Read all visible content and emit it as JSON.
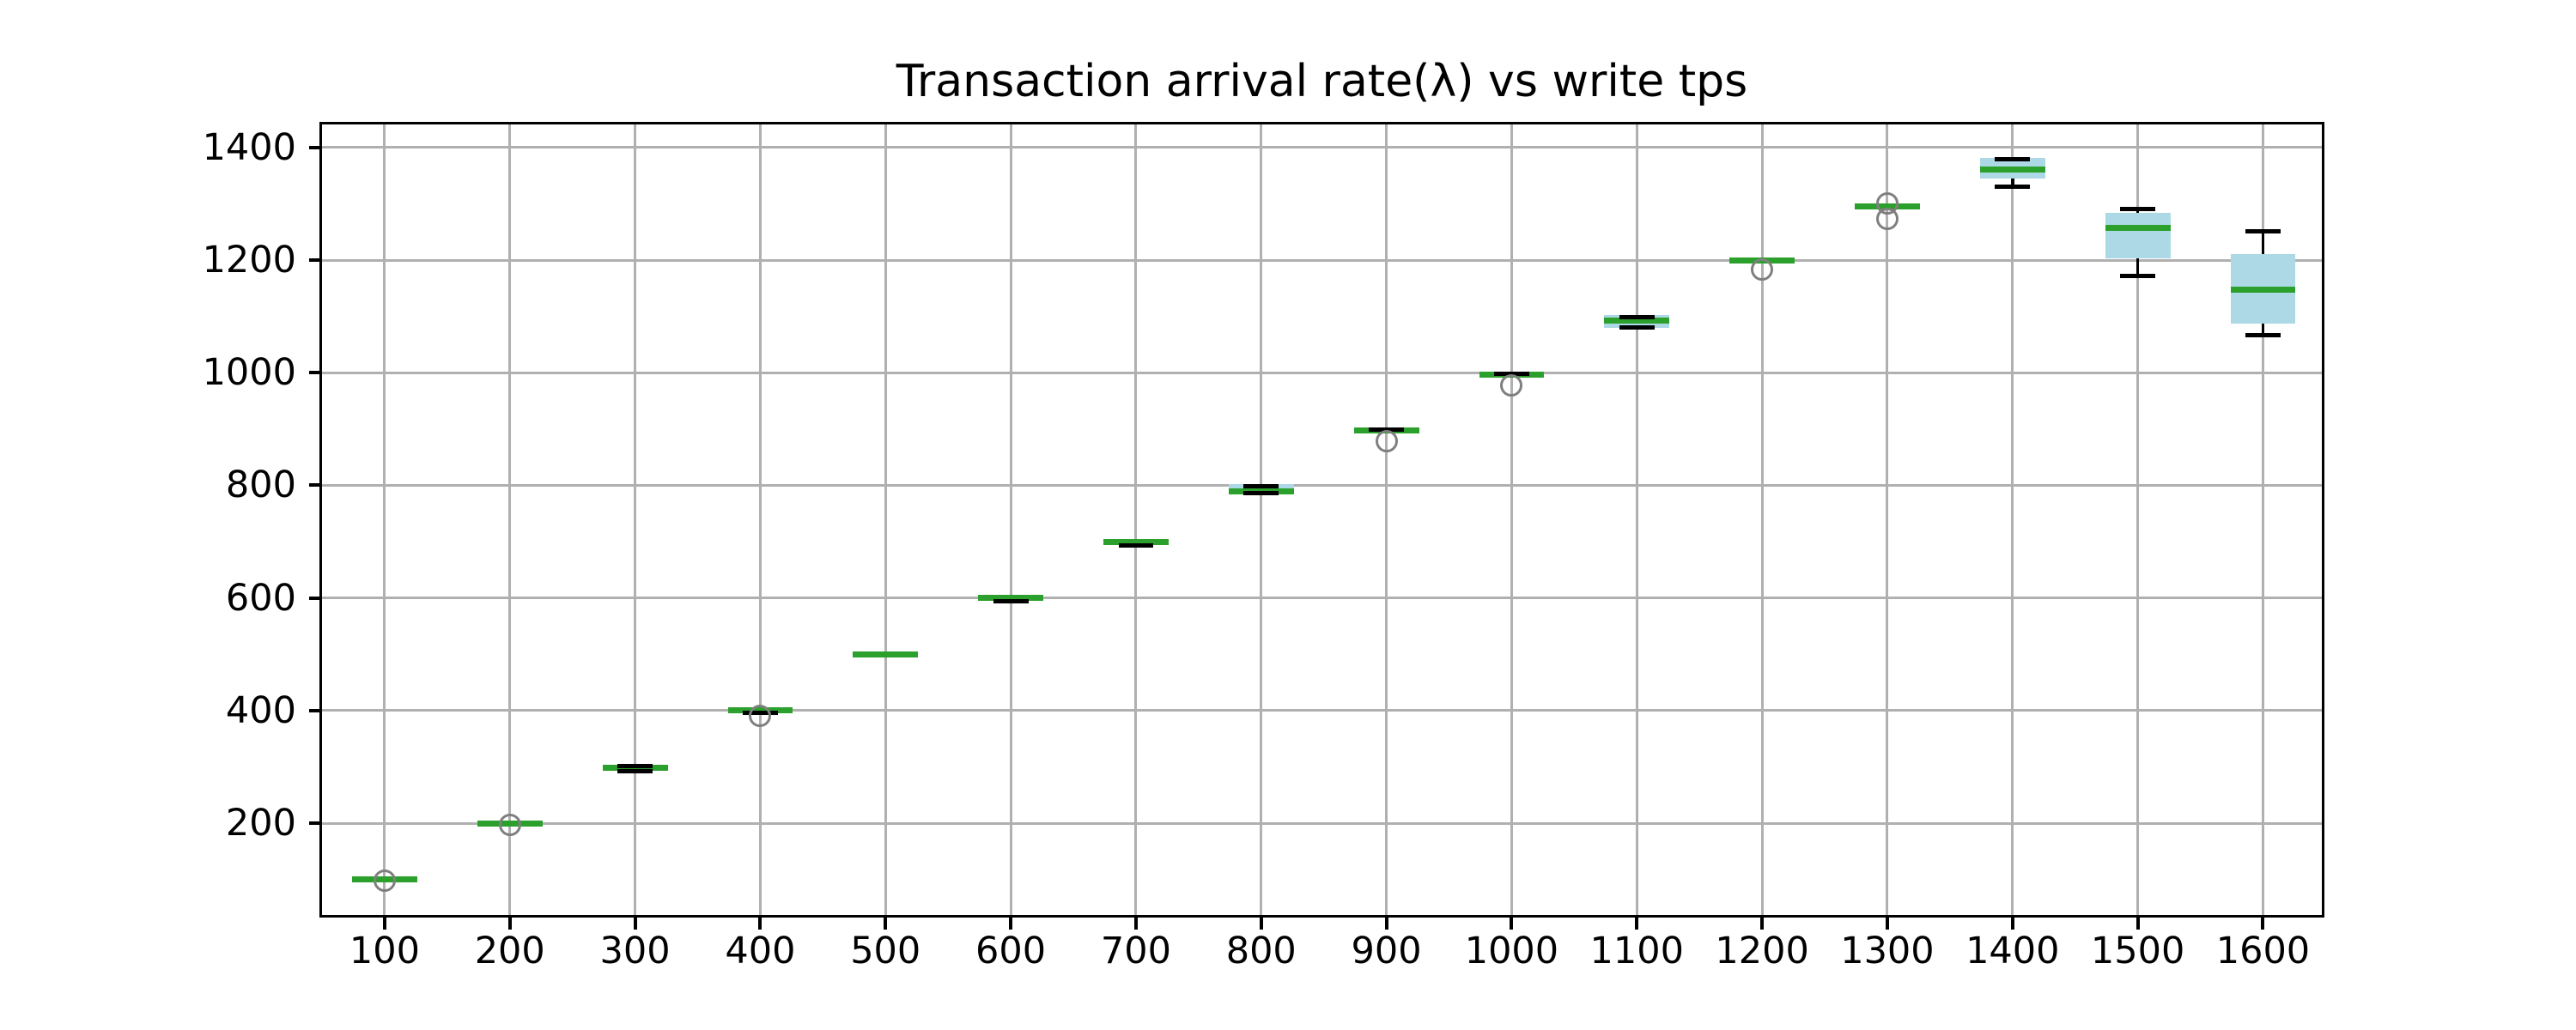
{
  "chart_data": {
    "type": "boxplot",
    "title": "Transaction arrival rate(λ) vs write tps",
    "xlabel": "",
    "ylabel": "",
    "grid": true,
    "legend": null,
    "xlim": [
      50,
      1647
    ],
    "ylim": [
      37,
      1441
    ],
    "x_ticks": [
      100,
      200,
      300,
      400,
      500,
      600,
      700,
      800,
      900,
      1000,
      1100,
      1200,
      1300,
      1400,
      1500,
      1600
    ],
    "y_ticks": [
      200,
      400,
      600,
      800,
      1000,
      1200,
      1400
    ],
    "box_width_units": 52,
    "cap_width_units": 28,
    "colors": {
      "box_fill": "#add8e6",
      "median": "#2ca02c",
      "whisker": "#000000",
      "cap": "#000000",
      "flier_edge": "#7f7f7f",
      "grid": "#b0b0b0",
      "spine": "#000000",
      "text": "#000000",
      "background": "#ffffff"
    },
    "boxes": [
      {
        "x": 100,
        "q1": 99.3,
        "med": 100,
        "q3": 100.7,
        "cap_low": null,
        "cap_high": null,
        "fliers": [
          98
        ]
      },
      {
        "x": 200,
        "q1": 199.3,
        "med": 200,
        "q3": 200.7,
        "cap_low": null,
        "cap_high": null,
        "fliers": [
          197
        ]
      },
      {
        "x": 300,
        "q1": 296,
        "med": 299,
        "q3": 300.5,
        "cap_low": 293,
        "cap_high": 302,
        "fliers": []
      },
      {
        "x": 400,
        "q1": 398,
        "med": 400,
        "q3": 401,
        "cap_low": 395.5,
        "cap_high": null,
        "fliers": [
          390
        ]
      },
      {
        "x": 500,
        "q1": 497,
        "med": 499,
        "q3": 502.5,
        "cap_low": null,
        "cap_high": null,
        "fliers": []
      },
      {
        "x": 600,
        "q1": 597.5,
        "med": 600,
        "q3": 601.5,
        "cap_low": 594,
        "cap_high": null,
        "fliers": []
      },
      {
        "x": 700,
        "q1": 697,
        "med": 700,
        "q3": 701.5,
        "cap_low": 694,
        "cap_high": null,
        "fliers": []
      },
      {
        "x": 800,
        "q1": 784.5,
        "med": 790,
        "q3": 802,
        "cap_low": 785.5,
        "cap_high": 799,
        "fliers": []
      },
      {
        "x": 900,
        "q1": 894.5,
        "med": 897,
        "q3": 899,
        "cap_low": null,
        "cap_high": 898.5,
        "fliers": [
          879
        ]
      },
      {
        "x": 1000,
        "q1": 995,
        "med": 997,
        "q3": 999.5,
        "cap_low": null,
        "cap_high": 997.5,
        "fliers": [
          978
        ]
      },
      {
        "x": 1100,
        "q1": 1079,
        "med": 1093,
        "q3": 1103,
        "cap_low": 1080.5,
        "cap_high": 1099,
        "fliers": []
      },
      {
        "x": 1200,
        "q1": 1197.5,
        "med": 1200,
        "q3": 1202,
        "cap_low": null,
        "cap_high": null,
        "fliers": [
          1184
        ]
      },
      {
        "x": 1300,
        "q1": 1292,
        "med": 1295,
        "q3": 1297.5,
        "cap_low": null,
        "cap_high": null,
        "fliers": [
          1301,
          1273
        ]
      },
      {
        "x": 1400,
        "q1": 1344.5,
        "med": 1360.5,
        "q3": 1381.5,
        "cap_low": 1331,
        "cap_high": 1379,
        "fliers": []
      },
      {
        "x": 1500,
        "q1": 1203,
        "med": 1257,
        "q3": 1284.5,
        "cap_low": 1171.5,
        "cap_high": 1291,
        "fliers": []
      },
      {
        "x": 1600,
        "q1": 1087,
        "med": 1147,
        "q3": 1211.5,
        "cap_low": 1067.5,
        "cap_high": 1251.5,
        "fliers": []
      }
    ]
  }
}
